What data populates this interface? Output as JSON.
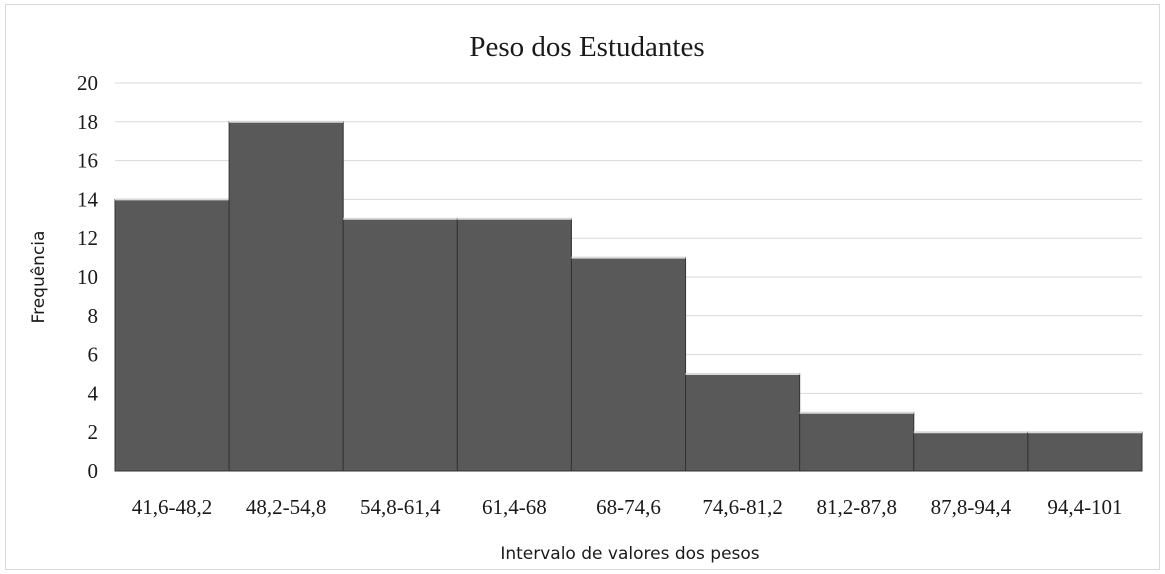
{
  "chart_data": {
    "type": "bar",
    "title": "Peso dos Estudantes",
    "xlabel": "Intervalo de valores dos pesos",
    "ylabel": "Frequência",
    "categories": [
      "41,6-48,2",
      "48,2-54,8",
      "54,8-61,4",
      "61,4-68",
      "68-74,6",
      "74,6-81,2",
      "81,2-87,8",
      "87,8-94,4",
      "94,4-101"
    ],
    "values": [
      14,
      18,
      13,
      13,
      11,
      5,
      3,
      2,
      2
    ],
    "ylim": [
      0,
      20
    ],
    "yticks": [
      0,
      2,
      4,
      6,
      8,
      10,
      12,
      14,
      16,
      18,
      20
    ],
    "grid": true,
    "legend": "none",
    "bar_color": "#595959"
  }
}
